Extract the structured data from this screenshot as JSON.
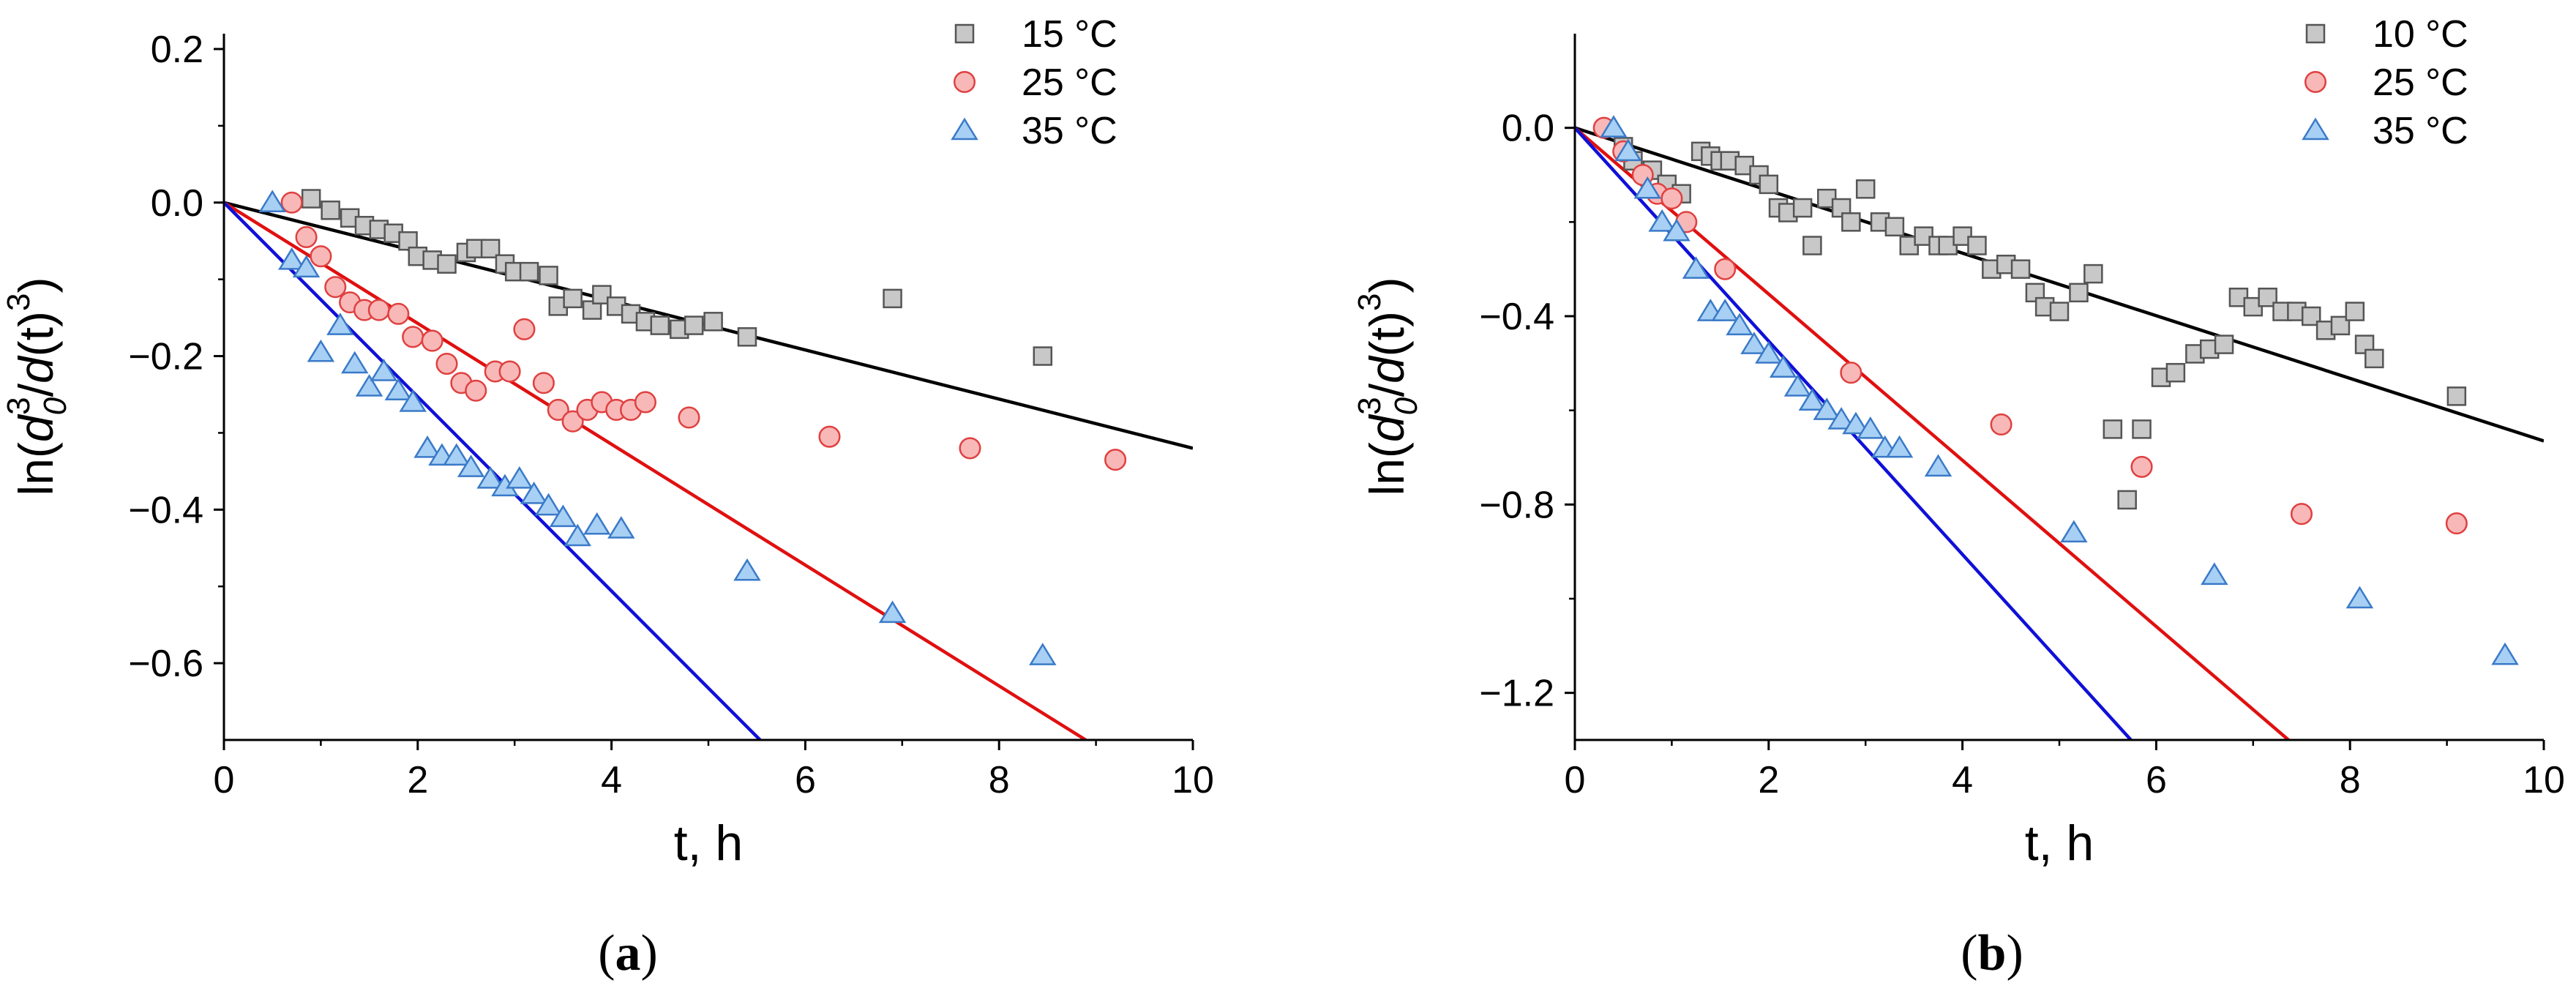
{
  "chart_data": [
    {
      "type": "scatter",
      "panel_label_prefix": "(",
      "panel_label": "a",
      "panel_label_suffix": ")",
      "xlabel": "t, h",
      "ylabel": "ln(d0³/d(t)³)",
      "ylabel_parts": {
        "pre": "ln(",
        "d1": "d",
        "sub": "0",
        "sup1": "3",
        "mid": "/",
        "d2": "d",
        "t": "(t)",
        "sup2": "3",
        "post": ")"
      },
      "xlim": [
        0,
        10
      ],
      "ylim": [
        -0.7,
        0.22
      ],
      "xticks": [
        0,
        2,
        4,
        6,
        8,
        10
      ],
      "xtick_labels": [
        "0",
        "2",
        "4",
        "6",
        "8",
        "10"
      ],
      "yticks": [
        0.2,
        0.0,
        -0.2,
        -0.4,
        -0.6
      ],
      "ytick_labels": [
        "0.2",
        "0.0",
        "−0.2",
        "−0.4",
        "−0.6"
      ],
      "legend": [
        "15 °C",
        "25 °C",
        "35 °C"
      ],
      "series": [
        {
          "name": "15 °C",
          "marker": "square",
          "fill": "#c8c8c8",
          "stroke": "#555555",
          "points": [
            [
              0.9,
              0.005
            ],
            [
              1.1,
              -0.01
            ],
            [
              1.3,
              -0.02
            ],
            [
              1.45,
              -0.03
            ],
            [
              1.6,
              -0.035
            ],
            [
              1.75,
              -0.04
            ],
            [
              1.9,
              -0.05
            ],
            [
              2.0,
              -0.07
            ],
            [
              2.15,
              -0.075
            ],
            [
              2.3,
              -0.08
            ],
            [
              2.5,
              -0.065
            ],
            [
              2.6,
              -0.06
            ],
            [
              2.75,
              -0.06
            ],
            [
              2.9,
              -0.08
            ],
            [
              3.0,
              -0.09
            ],
            [
              3.15,
              -0.09
            ],
            [
              3.35,
              -0.095
            ],
            [
              3.45,
              -0.135
            ],
            [
              3.6,
              -0.125
            ],
            [
              3.8,
              -0.14
            ],
            [
              3.9,
              -0.12
            ],
            [
              4.05,
              -0.135
            ],
            [
              4.2,
              -0.145
            ],
            [
              4.35,
              -0.155
            ],
            [
              4.5,
              -0.16
            ],
            [
              4.7,
              -0.165
            ],
            [
              4.85,
              -0.16
            ],
            [
              5.05,
              -0.155
            ],
            [
              5.4,
              -0.175
            ],
            [
              6.9,
              -0.125
            ],
            [
              8.45,
              -0.2
            ]
          ],
          "fit_slope": -0.032
        },
        {
          "name": "25 °C",
          "marker": "circle",
          "fill": "#f8b8b8",
          "stroke": "#e04040",
          "points": [
            [
              0.7,
              0.0
            ],
            [
              0.85,
              -0.045
            ],
            [
              1.0,
              -0.07
            ],
            [
              1.15,
              -0.11
            ],
            [
              1.3,
              -0.13
            ],
            [
              1.45,
              -0.14
            ],
            [
              1.6,
              -0.14
            ],
            [
              1.8,
              -0.145
            ],
            [
              1.95,
              -0.175
            ],
            [
              2.15,
              -0.18
            ],
            [
              2.3,
              -0.21
            ],
            [
              2.45,
              -0.235
            ],
            [
              2.6,
              -0.245
            ],
            [
              2.8,
              -0.22
            ],
            [
              2.95,
              -0.22
            ],
            [
              3.1,
              -0.165
            ],
            [
              3.3,
              -0.235
            ],
            [
              3.45,
              -0.27
            ],
            [
              3.6,
              -0.285
            ],
            [
              3.75,
              -0.27
            ],
            [
              3.9,
              -0.26
            ],
            [
              4.05,
              -0.27
            ],
            [
              4.2,
              -0.27
            ],
            [
              4.35,
              -0.26
            ],
            [
              4.8,
              -0.28
            ],
            [
              6.25,
              -0.305
            ],
            [
              7.7,
              -0.32
            ],
            [
              9.2,
              -0.335
            ]
          ],
          "fit_slope": -0.0787
        },
        {
          "name": "35 °C",
          "marker": "triangle",
          "fill": "#a8d0f4",
          "stroke": "#3a7ac8",
          "points": [
            [
              0.5,
              0.0
            ],
            [
              0.7,
              -0.075
            ],
            [
              0.85,
              -0.085
            ],
            [
              1.0,
              -0.195
            ],
            [
              1.2,
              -0.16
            ],
            [
              1.35,
              -0.21
            ],
            [
              1.5,
              -0.24
            ],
            [
              1.65,
              -0.22
            ],
            [
              1.8,
              -0.245
            ],
            [
              1.95,
              -0.26
            ],
            [
              2.1,
              -0.32
            ],
            [
              2.25,
              -0.33
            ],
            [
              2.4,
              -0.33
            ],
            [
              2.55,
              -0.345
            ],
            [
              2.75,
              -0.36
            ],
            [
              2.9,
              -0.37
            ],
            [
              3.05,
              -0.36
            ],
            [
              3.2,
              -0.38
            ],
            [
              3.35,
              -0.395
            ],
            [
              3.5,
              -0.41
            ],
            [
              3.65,
              -0.435
            ],
            [
              3.85,
              -0.42
            ],
            [
              4.1,
              -0.425
            ],
            [
              5.4,
              -0.48
            ],
            [
              6.9,
              -0.535
            ],
            [
              8.45,
              -0.59
            ]
          ],
          "fit_slope": -0.1265
        }
      ]
    },
    {
      "type": "scatter",
      "panel_label_prefix": "(",
      "panel_label": "b",
      "panel_label_suffix": ")",
      "xlabel": "t, h",
      "ylabel": "ln(d0³/d(t)³)",
      "ylabel_parts": {
        "pre": "ln(",
        "d1": "d",
        "sub": "0",
        "sup1": "3",
        "mid": "/",
        "d2": "d",
        "t": "(t)",
        "sup2": "3",
        "post": ")"
      },
      "xlim": [
        0,
        10
      ],
      "ylim": [
        -1.3,
        0.2
      ],
      "xticks": [
        0,
        2,
        4,
        6,
        8,
        10
      ],
      "xtick_labels": [
        "0",
        "2",
        "4",
        "6",
        "8",
        "10"
      ],
      "yticks": [
        0.0,
        -0.4,
        -0.8,
        -1.2
      ],
      "ytick_labels": [
        "0.0",
        "−0.4",
        "−0.8",
        "−1.2"
      ],
      "legend": [
        "10 °C",
        "25 °C",
        "35 °C"
      ],
      "series": [
        {
          "name": "10 °C",
          "marker": "square",
          "fill": "#c8c8c8",
          "stroke": "#555555",
          "points": [
            [
              0.5,
              -0.04
            ],
            [
              0.6,
              -0.07
            ],
            [
              0.8,
              -0.09
            ],
            [
              0.95,
              -0.12
            ],
            [
              1.1,
              -0.14
            ],
            [
              1.3,
              -0.05
            ],
            [
              1.4,
              -0.06
            ],
            [
              1.5,
              -0.07
            ],
            [
              1.6,
              -0.07
            ],
            [
              1.75,
              -0.08
            ],
            [
              1.9,
              -0.1
            ],
            [
              2.0,
              -0.12
            ],
            [
              2.1,
              -0.17
            ],
            [
              2.2,
              -0.18
            ],
            [
              2.35,
              -0.17
            ],
            [
              2.45,
              -0.25
            ],
            [
              2.6,
              -0.15
            ],
            [
              2.75,
              -0.17
            ],
            [
              2.85,
              -0.2
            ],
            [
              3.0,
              -0.13
            ],
            [
              3.15,
              -0.2
            ],
            [
              3.3,
              -0.21
            ],
            [
              3.45,
              -0.25
            ],
            [
              3.6,
              -0.23
            ],
            [
              3.75,
              -0.25
            ],
            [
              3.85,
              -0.25
            ],
            [
              4.0,
              -0.23
            ],
            [
              4.15,
              -0.25
            ],
            [
              4.3,
              -0.3
            ],
            [
              4.45,
              -0.29
            ],
            [
              4.6,
              -0.3
            ],
            [
              4.75,
              -0.35
            ],
            [
              4.85,
              -0.38
            ],
            [
              5.0,
              -0.39
            ],
            [
              5.2,
              -0.35
            ],
            [
              5.35,
              -0.31
            ],
            [
              5.55,
              -0.64
            ],
            [
              5.7,
              -0.79
            ],
            [
              5.85,
              -0.64
            ],
            [
              6.05,
              -0.53
            ],
            [
              6.2,
              -0.52
            ],
            [
              6.4,
              -0.48
            ],
            [
              6.55,
              -0.47
            ],
            [
              6.7,
              -0.46
            ],
            [
              6.85,
              -0.36
            ],
            [
              7.0,
              -0.38
            ],
            [
              7.15,
              -0.36
            ],
            [
              7.3,
              -0.39
            ],
            [
              7.45,
              -0.39
            ],
            [
              7.6,
              -0.4
            ],
            [
              7.75,
              -0.43
            ],
            [
              7.9,
              -0.42
            ],
            [
              8.05,
              -0.39
            ],
            [
              8.15,
              -0.46
            ],
            [
              8.25,
              -0.49
            ],
            [
              9.1,
              -0.57
            ]
          ],
          "fit_slope": -0.0665
        },
        {
          "name": "25 °C",
          "marker": "circle",
          "fill": "#f8b8b8",
          "stroke": "#e04040",
          "points": [
            [
              0.3,
              0.0
            ],
            [
              0.5,
              -0.05
            ],
            [
              0.7,
              -0.1
            ],
            [
              0.85,
              -0.14
            ],
            [
              1.0,
              -0.15
            ],
            [
              1.15,
              -0.2
            ],
            [
              1.55,
              -0.3
            ],
            [
              2.85,
              -0.52
            ],
            [
              4.4,
              -0.63
            ],
            [
              5.85,
              -0.72
            ],
            [
              7.5,
              -0.82
            ],
            [
              9.1,
              -0.84
            ]
          ],
          "fit_slope": -0.1765
        },
        {
          "name": "35 °C",
          "marker": "triangle",
          "fill": "#a8d0f4",
          "stroke": "#3a7ac8",
          "points": [
            [
              0.4,
              0.0
            ],
            [
              0.55,
              -0.05
            ],
            [
              0.75,
              -0.13
            ],
            [
              0.9,
              -0.2
            ],
            [
              1.05,
              -0.22
            ],
            [
              1.25,
              -0.3
            ],
            [
              1.4,
              -0.39
            ],
            [
              1.55,
              -0.39
            ],
            [
              1.7,
              -0.42
            ],
            [
              1.85,
              -0.46
            ],
            [
              2.0,
              -0.48
            ],
            [
              2.15,
              -0.51
            ],
            [
              2.3,
              -0.55
            ],
            [
              2.45,
              -0.58
            ],
            [
              2.6,
              -0.6
            ],
            [
              2.75,
              -0.62
            ],
            [
              2.9,
              -0.63
            ],
            [
              3.05,
              -0.64
            ],
            [
              3.2,
              -0.68
            ],
            [
              3.35,
              -0.68
            ],
            [
              3.75,
              -0.72
            ],
            [
              5.15,
              -0.86
            ],
            [
              6.6,
              -0.95
            ],
            [
              8.1,
              -1.0
            ],
            [
              9.6,
              -1.12
            ]
          ],
          "fit_slope": -0.2265
        }
      ]
    }
  ]
}
